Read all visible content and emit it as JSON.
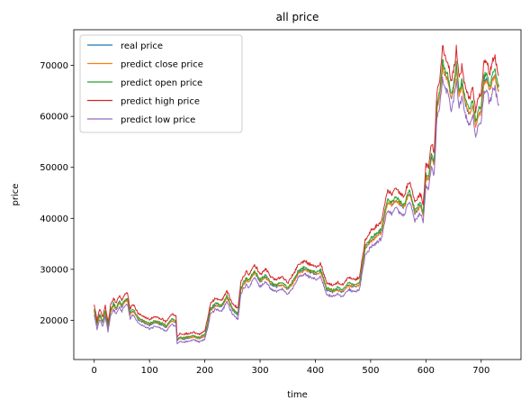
{
  "chart_data": {
    "type": "line",
    "title": "all price",
    "xlabel": "time",
    "ylabel": "price",
    "xlim": [
      -37,
      772
    ],
    "ylim": [
      12300,
      77000
    ],
    "xticks": [
      0,
      100,
      200,
      300,
      400,
      500,
      600,
      700
    ],
    "yticks": [
      20000,
      30000,
      40000,
      50000,
      60000,
      70000
    ],
    "grid": false,
    "legend_position": "top-left",
    "x_count": 733,
    "anchors": {
      "t": [
        0,
        5,
        10,
        15,
        20,
        25,
        30,
        35,
        40,
        45,
        50,
        55,
        60,
        65,
        70,
        80,
        90,
        100,
        110,
        120,
        130,
        140,
        148,
        150,
        155,
        160,
        170,
        180,
        190,
        200,
        205,
        210,
        215,
        220,
        230,
        240,
        250,
        260,
        265,
        270,
        275,
        280,
        290,
        295,
        300,
        310,
        320,
        330,
        340,
        350,
        360,
        370,
        380,
        390,
        400,
        410,
        420,
        430,
        440,
        450,
        460,
        470,
        480,
        490,
        493,
        500,
        510,
        520,
        530,
        540,
        545,
        550,
        560,
        570,
        575,
        580,
        590,
        595,
        600,
        605,
        610,
        615,
        620,
        625,
        630,
        635,
        640,
        645,
        650,
        655,
        660,
        665,
        670,
        675,
        680,
        685,
        690,
        695,
        700,
        705,
        710,
        715,
        720,
        725,
        730,
        732
      ],
      "real": [
        22000,
        19000,
        21000,
        19500,
        21500,
        18500,
        22000,
        23000,
        22000,
        23500,
        22500,
        23800,
        24000,
        21000,
        22000,
        20000,
        19500,
        19000,
        19500,
        19200,
        18500,
        20000,
        19500,
        16000,
        16500,
        16300,
        16500,
        16800,
        16400,
        16900,
        19000,
        22000,
        22500,
        23000,
        22500,
        24500,
        22000,
        21000,
        26000,
        27000,
        28000,
        27500,
        29500,
        28500,
        27500,
        28500,
        27000,
        26500,
        27000,
        26000,
        27500,
        29500,
        30000,
        29500,
        29000,
        29500,
        26000,
        25500,
        26000,
        25500,
        27000,
        26500,
        27000,
        34000,
        34500,
        35500,
        36500,
        37500,
        43000,
        42500,
        43500,
        43000,
        42000,
        45000,
        43000,
        41000,
        42500,
        40500,
        48000,
        47500,
        52000,
        50500,
        61500,
        64000,
        70000,
        68000,
        67000,
        63500,
        65000,
        69500,
        64000,
        66000,
        63000,
        61000,
        60500,
        62000,
        58000,
        60000,
        61500,
        66500,
        67500,
        65000,
        67000,
        68000,
        65500,
        64500
      ],
      "close": [
        21800,
        19200,
        20800,
        19700,
        21300,
        18700,
        21800,
        22800,
        22200,
        23300,
        22700,
        23600,
        23800,
        21200,
        21800,
        20200,
        19700,
        19200,
        19700,
        19400,
        18700,
        19800,
        19700,
        16200,
        16400,
        16500,
        16600,
        16700,
        16500,
        17000,
        19200,
        21800,
        22300,
        22800,
        22700,
        24300,
        22200,
        21200,
        25800,
        26800,
        27800,
        27700,
        29300,
        28700,
        27700,
        28300,
        27200,
        26700,
        26800,
        26200,
        27300,
        29300,
        29800,
        29700,
        29200,
        29300,
        26200,
        25700,
        25800,
        25700,
        26800,
        26700,
        26800,
        33800,
        34700,
        35300,
        36300,
        37300,
        42800,
        42700,
        43300,
        43200,
        42200,
        44800,
        43200,
        41200,
        42300,
        40700,
        47800,
        47700,
        51800,
        50700,
        61200,
        63800,
        69700,
        68200,
        66800,
        63700,
        64800,
        69200,
        64200,
        65800,
        63200,
        61200,
        60700,
        61800,
        58200,
        59800,
        61300,
        66200,
        67300,
        65200,
        66800,
        67800,
        65700,
        64700
      ],
      "open": [
        22300,
        19400,
        21200,
        19700,
        21800,
        18800,
        22300,
        23300,
        22400,
        23800,
        22900,
        24100,
        24300,
        21500,
        22300,
        20400,
        19900,
        19400,
        19900,
        19600,
        18900,
        20300,
        19900,
        16200,
        16700,
        16600,
        16800,
        17000,
        16700,
        17200,
        19400,
        22300,
        22800,
        23400,
        22900,
        24800,
        22400,
        21400,
        26300,
        27400,
        28300,
        27900,
        29800,
        28900,
        27900,
        28900,
        27400,
        26900,
        27400,
        26400,
        27800,
        29800,
        30400,
        29900,
        29400,
        29900,
        26400,
        25900,
        26400,
        25900,
        27400,
        26900,
        27400,
        34500,
        35000,
        36000,
        37000,
        38000,
        43600,
        43100,
        44100,
        43600,
        42600,
        45600,
        43600,
        41600,
        43100,
        41100,
        48600,
        48100,
        52700,
        51200,
        62300,
        64900,
        71000,
        69000,
        68000,
        64500,
        66000,
        70500,
        65000,
        67000,
        64000,
        62000,
        61500,
        63000,
        59000,
        61000,
        62500,
        67500,
        68500,
        66000,
        68000,
        69000,
        66500,
        65500
      ],
      "high": [
        23200,
        20000,
        22200,
        20600,
        22700,
        19600,
        23200,
        24300,
        23300,
        24800,
        23800,
        25100,
        25300,
        22300,
        23200,
        21200,
        20700,
        20200,
        20700,
        20400,
        19700,
        21200,
        20700,
        16800,
        17400,
        17200,
        17400,
        17700,
        17300,
        17900,
        20200,
        23200,
        23800,
        24300,
        23800,
        25800,
        23300,
        22300,
        27400,
        28500,
        29500,
        29000,
        31000,
        30000,
        29000,
        30000,
        28500,
        28000,
        28500,
        27400,
        29000,
        31000,
        31600,
        31000,
        30500,
        31000,
        27400,
        26900,
        27400,
        26900,
        28500,
        27900,
        28500,
        35800,
        36300,
        37400,
        38400,
        39500,
        45300,
        44700,
        45800,
        45300,
        44200,
        47300,
        45300,
        43200,
        44700,
        42700,
        50500,
        50000,
        54700,
        53200,
        64700,
        67400,
        73700,
        71600,
        70500,
        66900,
        68500,
        73200,
        67400,
        69500,
        66400,
        64300,
        63800,
        65400,
        61200,
        63300,
        64900,
        70100,
        71100,
        68500,
        70600,
        71600,
        69000,
        68000
      ],
      "low": [
        21200,
        18200,
        20200,
        18700,
        20600,
        17800,
        21200,
        22100,
        21200,
        22600,
        21700,
        22900,
        23100,
        20200,
        21200,
        19300,
        18800,
        18300,
        18800,
        18500,
        17800,
        19300,
        18800,
        15400,
        15900,
        15700,
        15900,
        16200,
        15800,
        16300,
        18300,
        21200,
        21700,
        22200,
        21700,
        23600,
        21200,
        20200,
        25100,
        26100,
        27000,
        26500,
        28500,
        27500,
        26500,
        27500,
        26100,
        25600,
        26100,
        25100,
        26500,
        28500,
        29000,
        28500,
        28000,
        28500,
        25100,
        24600,
        25100,
        24600,
        26100,
        25600,
        26100,
        32800,
        33300,
        34300,
        35200,
        36200,
        41500,
        41000,
        42000,
        41500,
        40500,
        43400,
        41500,
        39600,
        41000,
        39100,
        46300,
        45800,
        50200,
        48700,
        59400,
        61800,
        67600,
        65600,
        64700,
        61300,
        62700,
        67100,
        61800,
        63700,
        60800,
        58900,
        58400,
        59800,
        56000,
        57900,
        59400,
        64200,
        65200,
        62700,
        64700,
        65600,
        63200,
        62200
      ]
    },
    "series": [
      {
        "name": "real price",
        "key": "real",
        "color": "#1f77b4",
        "noise": 0.008
      },
      {
        "name": "predict close price",
        "key": "close",
        "color": "#ff7f0e",
        "noise": 0.009
      },
      {
        "name": "predict open price",
        "key": "open",
        "color": "#2ca02c",
        "noise": 0.01
      },
      {
        "name": "predict high price",
        "key": "high",
        "color": "#d62728",
        "noise": 0.011
      },
      {
        "name": "predict low price",
        "key": "low",
        "color": "#9467bd",
        "noise": 0.011
      }
    ]
  }
}
